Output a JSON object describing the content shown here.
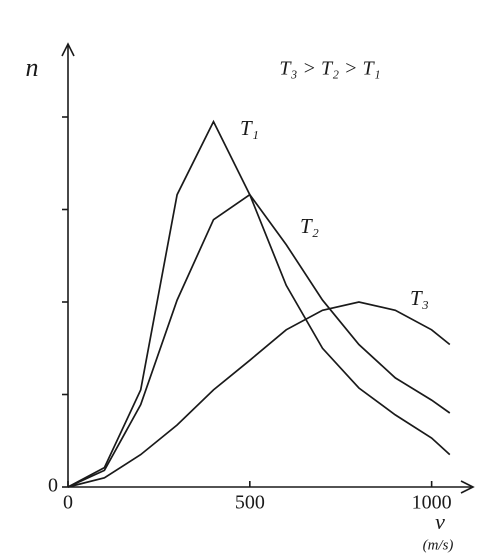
{
  "chart_data": {
    "type": "line",
    "annotation": "T₃ > T₂ > T₁",
    "y_label": "n",
    "x_label": "v",
    "x_unit": "(m/s)",
    "x": [
      0,
      100,
      200,
      300,
      400,
      500,
      600,
      700,
      800,
      900,
      1000,
      1050
    ],
    "series": [
      {
        "name": "T₁",
        "color": "#1a1a1a",
        "values": [
          0,
          0.21,
          1.05,
          3.16,
          3.95,
          3.16,
          2.18,
          1.5,
          1.07,
          0.78,
          0.53,
          0.35
        ]
      },
      {
        "name": "T₂",
        "color": "#1a1a1a",
        "values": [
          0,
          0.18,
          0.89,
          2.02,
          2.89,
          3.16,
          2.62,
          2.02,
          1.54,
          1.18,
          0.94,
          0.8
        ]
      },
      {
        "name": "T₃",
        "color": "#1a1a1a",
        "values": [
          0,
          0.1,
          0.35,
          0.67,
          1.05,
          1.37,
          1.7,
          1.91,
          2.0,
          1.91,
          1.7,
          1.54
        ]
      }
    ],
    "xlim": [
      0,
      1100
    ],
    "xticks": [
      0,
      500,
      1000
    ],
    "ylim": [
      0,
      4.8
    ],
    "yticks": [
      0
    ],
    "y_tick_marks": [
      1,
      2,
      3,
      4
    ],
    "grid": false
  }
}
